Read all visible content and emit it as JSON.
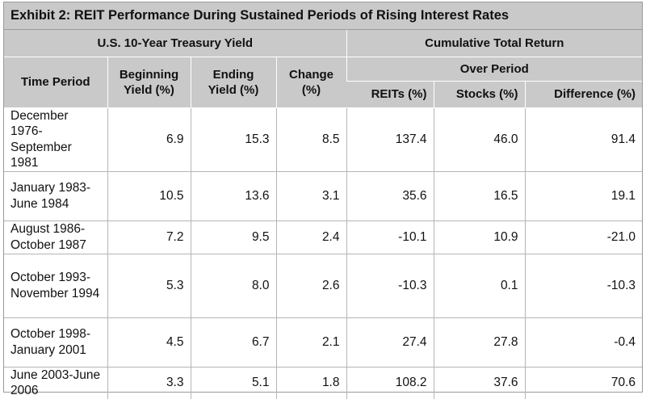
{
  "title": "Exhibit 2: REIT Performance During Sustained Periods of Rising Interest Rates",
  "groups": {
    "treasury": "U.S. 10-Year Treasury Yield",
    "cumulative": "Cumulative Total Return",
    "over_period": "Over Period"
  },
  "columns": {
    "time_period": "Time Period",
    "beginning_yield": "Beginning Yield (%)",
    "ending_yield": "Ending Yield (%)",
    "change": "Change (%)",
    "reits": "REITs (%)",
    "stocks": "Stocks (%)",
    "difference": "Difference (%)"
  },
  "rows": [
    {
      "period": "December 1976-September 1981",
      "beginning": "6.9",
      "ending": "15.3",
      "change": "8.5",
      "reits": "137.4",
      "stocks": "46.0",
      "difference": "91.4"
    },
    {
      "period": "January 1983-June 1984",
      "beginning": "10.5",
      "ending": "13.6",
      "change": "3.1",
      "reits": "35.6",
      "stocks": "16.5",
      "difference": "19.1"
    },
    {
      "period": "August 1986-October 1987",
      "beginning": "7.2",
      "ending": "9.5",
      "change": "2.4",
      "reits": "-10.1",
      "stocks": "10.9",
      "difference": "-21.0"
    },
    {
      "period": "October 1993-November 1994",
      "beginning": "5.3",
      "ending": "8.0",
      "change": "2.6",
      "reits": "-10.3",
      "stocks": "0.1",
      "difference": "-10.3"
    },
    {
      "period": "October 1998-January 2001",
      "beginning": "4.5",
      "ending": "6.7",
      "change": "2.1",
      "reits": "27.4",
      "stocks": "27.8",
      "difference": "-0.4"
    },
    {
      "period": "June 2003-June 2006",
      "beginning": "3.3",
      "ending": "5.1",
      "change": "1.8",
      "reits": "108.2",
      "stocks": "37.6",
      "difference": "70.6"
    }
  ]
}
